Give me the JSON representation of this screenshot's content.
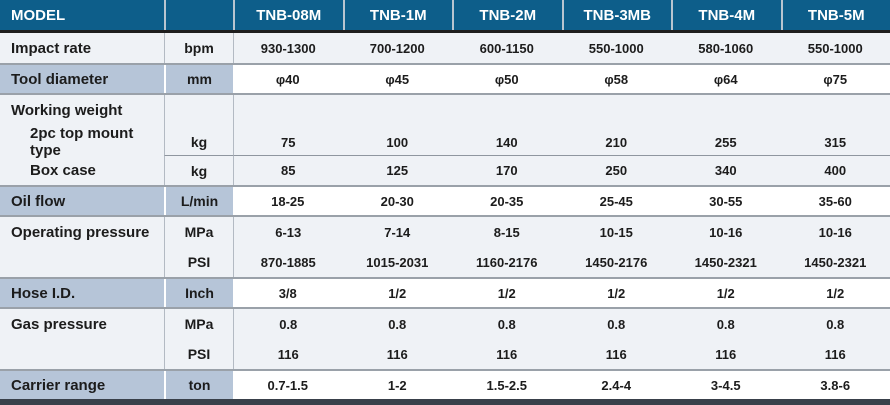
{
  "colors": {
    "header_bg": "#0d5e8a",
    "header_text": "#ffffff",
    "header_divider": "#b9c5d0",
    "blue_cell": "#b6c5d8",
    "light_row": "#eff2f6",
    "white_row": "#ffffff",
    "section_divider": "#9aa1a9",
    "header_underline": "#1e1e1e",
    "bottom_bar": "#39404a",
    "text": "#1c1c1c"
  },
  "table": {
    "header": {
      "model_label": "MODEL",
      "unit_label": "",
      "columns": [
        "TNB-08M",
        "TNB-1M",
        "TNB-2M",
        "TNB-3MB",
        "TNB-4M",
        "TNB-5M"
      ]
    },
    "sections": [
      {
        "tone": "light",
        "rows": [
          {
            "label": "Impact rate",
            "unit": "bpm",
            "values": [
              "930-1300",
              "700-1200",
              "600-1150",
              "550-1000",
              "580-1060",
              "550-1000"
            ]
          }
        ]
      },
      {
        "tone": "blue",
        "rows": [
          {
            "label": "Tool diameter",
            "unit": "mm",
            "values": [
              "φ40",
              "φ45",
              "φ50",
              "φ58",
              "φ64",
              "φ75"
            ]
          }
        ]
      },
      {
        "tone": "light",
        "rows": [
          {
            "label": "Working weight",
            "unit": "",
            "values": [
              "",
              "",
              "",
              "",
              "",
              ""
            ]
          },
          {
            "label": "2pc top mount type",
            "indent": true,
            "unit": "kg",
            "values": [
              "75",
              "100",
              "140",
              "210",
              "255",
              "315"
            ]
          },
          {
            "label": "Box case",
            "indent": true,
            "topline": true,
            "unit": "kg",
            "values": [
              "85",
              "125",
              "170",
              "250",
              "340",
              "400"
            ]
          }
        ]
      },
      {
        "tone": "blue",
        "rows": [
          {
            "label": "Oil flow",
            "unit": "L/min",
            "values": [
              "18-25",
              "20-30",
              "20-35",
              "25-45",
              "30-55",
              "35-60"
            ]
          }
        ]
      },
      {
        "tone": "light",
        "rows": [
          {
            "label": "Operating pressure",
            "unit": "MPa",
            "values": [
              "6-13",
              "7-14",
              "8-15",
              "10-15",
              "10-16",
              "10-16"
            ]
          },
          {
            "label": "",
            "unit": "PSI",
            "values": [
              "870-1885",
              "1015-2031",
              "1160-2176",
              "1450-2176",
              "1450-2321",
              "1450-2321"
            ]
          }
        ]
      },
      {
        "tone": "blue",
        "rows": [
          {
            "label": "Hose I.D.",
            "unit": "Inch",
            "values": [
              "3/8",
              "1/2",
              "1/2",
              "1/2",
              "1/2",
              "1/2"
            ]
          }
        ]
      },
      {
        "tone": "light",
        "rows": [
          {
            "label": "Gas pressure",
            "unit": "MPa",
            "values": [
              "0.8",
              "0.8",
              "0.8",
              "0.8",
              "0.8",
              "0.8"
            ]
          },
          {
            "label": "",
            "unit": "PSI",
            "values": [
              "116",
              "116",
              "116",
              "116",
              "116",
              "116"
            ]
          }
        ]
      },
      {
        "tone": "blue",
        "rows": [
          {
            "label": "Carrier range",
            "unit": "ton",
            "values": [
              "0.7-1.5",
              "1-2",
              "1.5-2.5",
              "2.4-4",
              "3-4.5",
              "3.8-6"
            ]
          }
        ]
      }
    ]
  }
}
